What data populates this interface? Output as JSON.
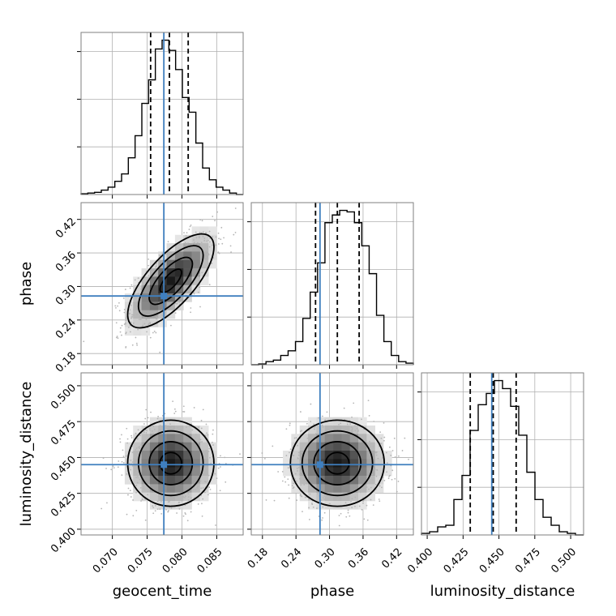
{
  "chart_data": {
    "type": "corner",
    "parameters": [
      "geocent_time",
      "phase",
      "luminosity_distance"
    ],
    "ranges": [
      [
        0.0655,
        0.0888
      ],
      [
        0.16,
        0.45
      ],
      [
        0.396,
        0.509
      ]
    ],
    "ticks": [
      [
        "0.070",
        "0.075",
        "0.080",
        "0.085"
      ],
      [
        "0.18",
        "0.24",
        "0.30",
        "0.36",
        "0.42"
      ],
      [
        "0.400",
        "0.425",
        "0.450",
        "0.475",
        "0.500"
      ]
    ],
    "truths": [
      0.0774,
      0.283,
      0.445
    ],
    "quantiles": [
      [
        0.0755,
        0.0782,
        0.0809
      ],
      [
        0.275,
        0.314,
        0.353
      ],
      [
        0.43,
        0.446,
        0.462
      ]
    ],
    "histograms": [
      {
        "edges_min": 0.0655,
        "edges_max": 0.0888,
        "counts": [
          0.5,
          1,
          1.5,
          3,
          5,
          9,
          14,
          25,
          40,
          62,
          78,
          99,
          105,
          98,
          85,
          66,
          56,
          35,
          18,
          10,
          5,
          3,
          1,
          0
        ]
      },
      {
        "edges_min": 0.16,
        "edges_max": 0.45,
        "counts": [
          0,
          0.5,
          2,
          3,
          6,
          9,
          15,
          30,
          47,
          66,
          92,
          97,
          100,
          99,
          92,
          77,
          59,
          32,
          15,
          6,
          2,
          1
        ]
      },
      {
        "edges_min": 0.396,
        "edges_max": 0.509,
        "counts": [
          1,
          2,
          5,
          6,
          22,
          37,
          65,
          81,
          88,
          96,
          91,
          80,
          62,
          39,
          22,
          11,
          6,
          2,
          1,
          0
        ]
      }
    ],
    "samples2d": [
      {
        "x": 0,
        "y": 1,
        "mean": [
          0.0784,
          0.31
        ],
        "sd": [
          0.0031,
          0.042
        ],
        "rho": 0.72
      },
      {
        "x": 0,
        "y": 2,
        "mean": [
          0.0784,
          0.446
        ],
        "sd": [
          0.0031,
          0.015
        ],
        "rho": 0.0
      },
      {
        "x": 1,
        "y": 2,
        "mean": [
          0.314,
          0.446
        ],
        "sd": [
          0.042,
          0.015
        ],
        "rho": 0.0
      }
    ],
    "contour_levels_sigma": [
      0.5,
      1.0,
      1.5,
      2.0
    ],
    "grid": true,
    "truth_color": "#3f7fbf"
  }
}
